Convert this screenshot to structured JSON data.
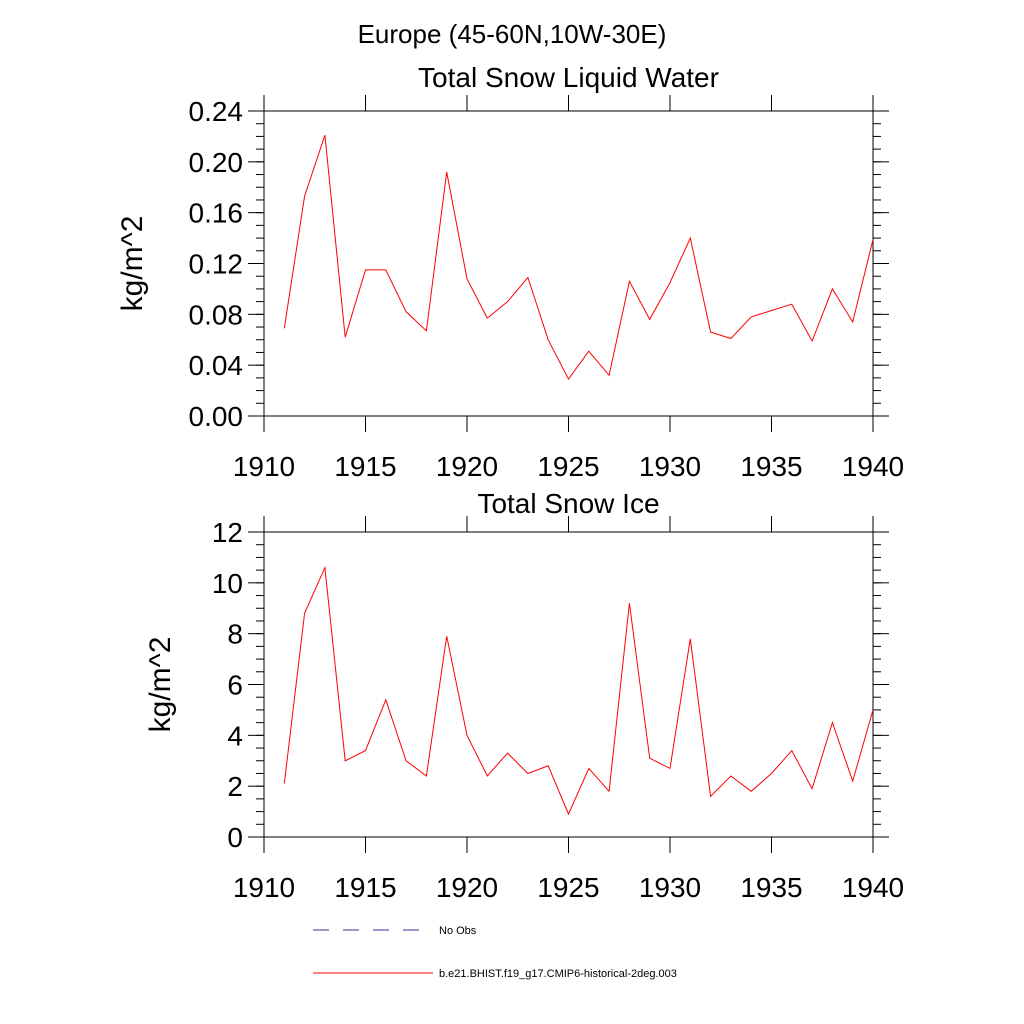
{
  "figure": {
    "suptitle": "Europe (45-60N,10W-30E)"
  },
  "legend": {
    "placement": "bottom",
    "entries": [
      {
        "label": "No Obs",
        "color": "#333399",
        "style": "dashed"
      },
      {
        "label": "b.e21.BHIST.f19_g17.CMIP6-historical-2deg.003",
        "color": "#ff0000",
        "style": "solid"
      }
    ]
  },
  "chart_data": [
    {
      "type": "line",
      "title": "Total Snow Liquid Water",
      "xlabel": "",
      "ylabel": "kg/m^2",
      "xlim": [
        1910,
        1940
      ],
      "ylim": [
        0,
        0.24
      ],
      "xticks": [
        "1910",
        "1915",
        "1920",
        "1925",
        "1930",
        "1935",
        "1940"
      ],
      "yticks": [
        "0.00",
        "0.04",
        "0.08",
        "0.12",
        "0.16",
        "0.20",
        "0.24"
      ],
      "grid": false,
      "series": [
        {
          "name": "b.e21.BHIST.f19_g17.CMIP6-historical-2deg.003",
          "color": "#ff0000",
          "x": [
            1911,
            1912,
            1913,
            1914,
            1915,
            1916,
            1917,
            1918,
            1919,
            1920,
            1921,
            1922,
            1923,
            1924,
            1925,
            1926,
            1927,
            1928,
            1929,
            1930,
            1931,
            1932,
            1933,
            1934,
            1935,
            1936,
            1937,
            1938,
            1939,
            1940
          ],
          "y": [
            0.069,
            0.173,
            0.221,
            0.062,
            0.115,
            0.115,
            0.082,
            0.067,
            0.192,
            0.108,
            0.077,
            0.09,
            0.109,
            0.06,
            0.029,
            0.051,
            0.032,
            0.106,
            0.076,
            0.105,
            0.14,
            0.066,
            0.061,
            0.078,
            0.083,
            0.088,
            0.059,
            0.1,
            0.074,
            0.139
          ]
        }
      ]
    },
    {
      "type": "line",
      "title": "Total Snow Ice",
      "xlabel": "",
      "ylabel": "kg/m^2",
      "xlim": [
        1910,
        1940
      ],
      "ylim": [
        0,
        12
      ],
      "xticks": [
        "1910",
        "1915",
        "1920",
        "1925",
        "1930",
        "1935",
        "1940"
      ],
      "yticks": [
        "0",
        "2",
        "4",
        "6",
        "8",
        "10",
        "12"
      ],
      "grid": false,
      "series": [
        {
          "name": "b.e21.BHIST.f19_g17.CMIP6-historical-2deg.003",
          "color": "#ff0000",
          "x": [
            1911,
            1912,
            1913,
            1914,
            1915,
            1916,
            1917,
            1918,
            1919,
            1920,
            1921,
            1922,
            1923,
            1924,
            1925,
            1926,
            1927,
            1928,
            1929,
            1930,
            1931,
            1932,
            1933,
            1934,
            1935,
            1936,
            1937,
            1938,
            1939,
            1940
          ],
          "y": [
            2.1,
            8.8,
            10.6,
            3.0,
            3.4,
            5.4,
            3.0,
            2.4,
            7.9,
            4.0,
            2.4,
            3.3,
            2.5,
            2.8,
            0.9,
            2.7,
            1.8,
            9.2,
            3.1,
            2.7,
            7.8,
            1.6,
            2.4,
            1.8,
            2.5,
            3.4,
            1.9,
            4.5,
            2.2,
            5.0
          ]
        }
      ]
    }
  ]
}
